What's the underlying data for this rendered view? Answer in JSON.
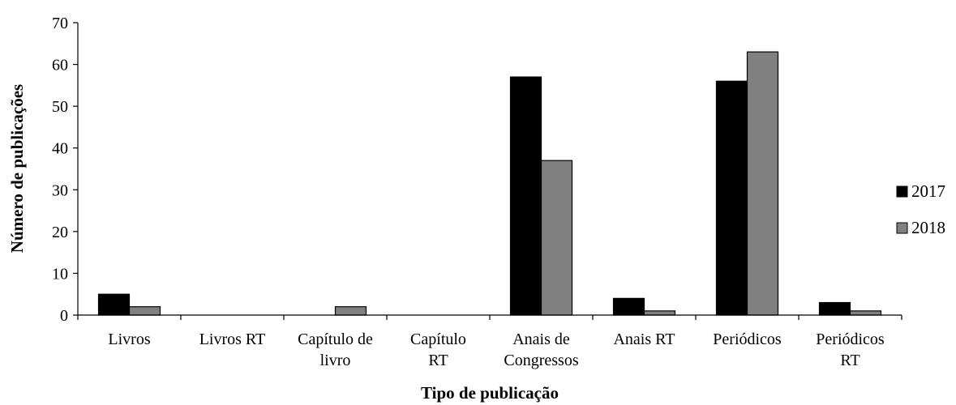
{
  "chart_data": {
    "type": "bar",
    "title": "",
    "xlabel": "Tipo de publicação",
    "ylabel": "Número de publicações",
    "ylim": [
      0,
      70
    ],
    "yticks": [
      0,
      10,
      20,
      30,
      40,
      50,
      60,
      70
    ],
    "grid": false,
    "legend_position": "right",
    "categories": [
      [
        "Livros"
      ],
      [
        "Livros RT"
      ],
      [
        "Capítulo de",
        "livro"
      ],
      [
        "Capítulo",
        "RT"
      ],
      [
        "Anais de",
        "Congressos"
      ],
      [
        "Anais RT"
      ],
      [
        "Periódicos"
      ],
      [
        "Periódicos",
        "RT"
      ]
    ],
    "series": [
      {
        "name": "2017",
        "color": "#000000",
        "values": [
          5,
          0,
          0,
          0,
          57,
          4,
          56,
          3
        ]
      },
      {
        "name": "2018",
        "color": "#808080",
        "values": [
          2,
          0,
          2,
          0,
          37,
          1,
          63,
          1
        ]
      }
    ]
  }
}
